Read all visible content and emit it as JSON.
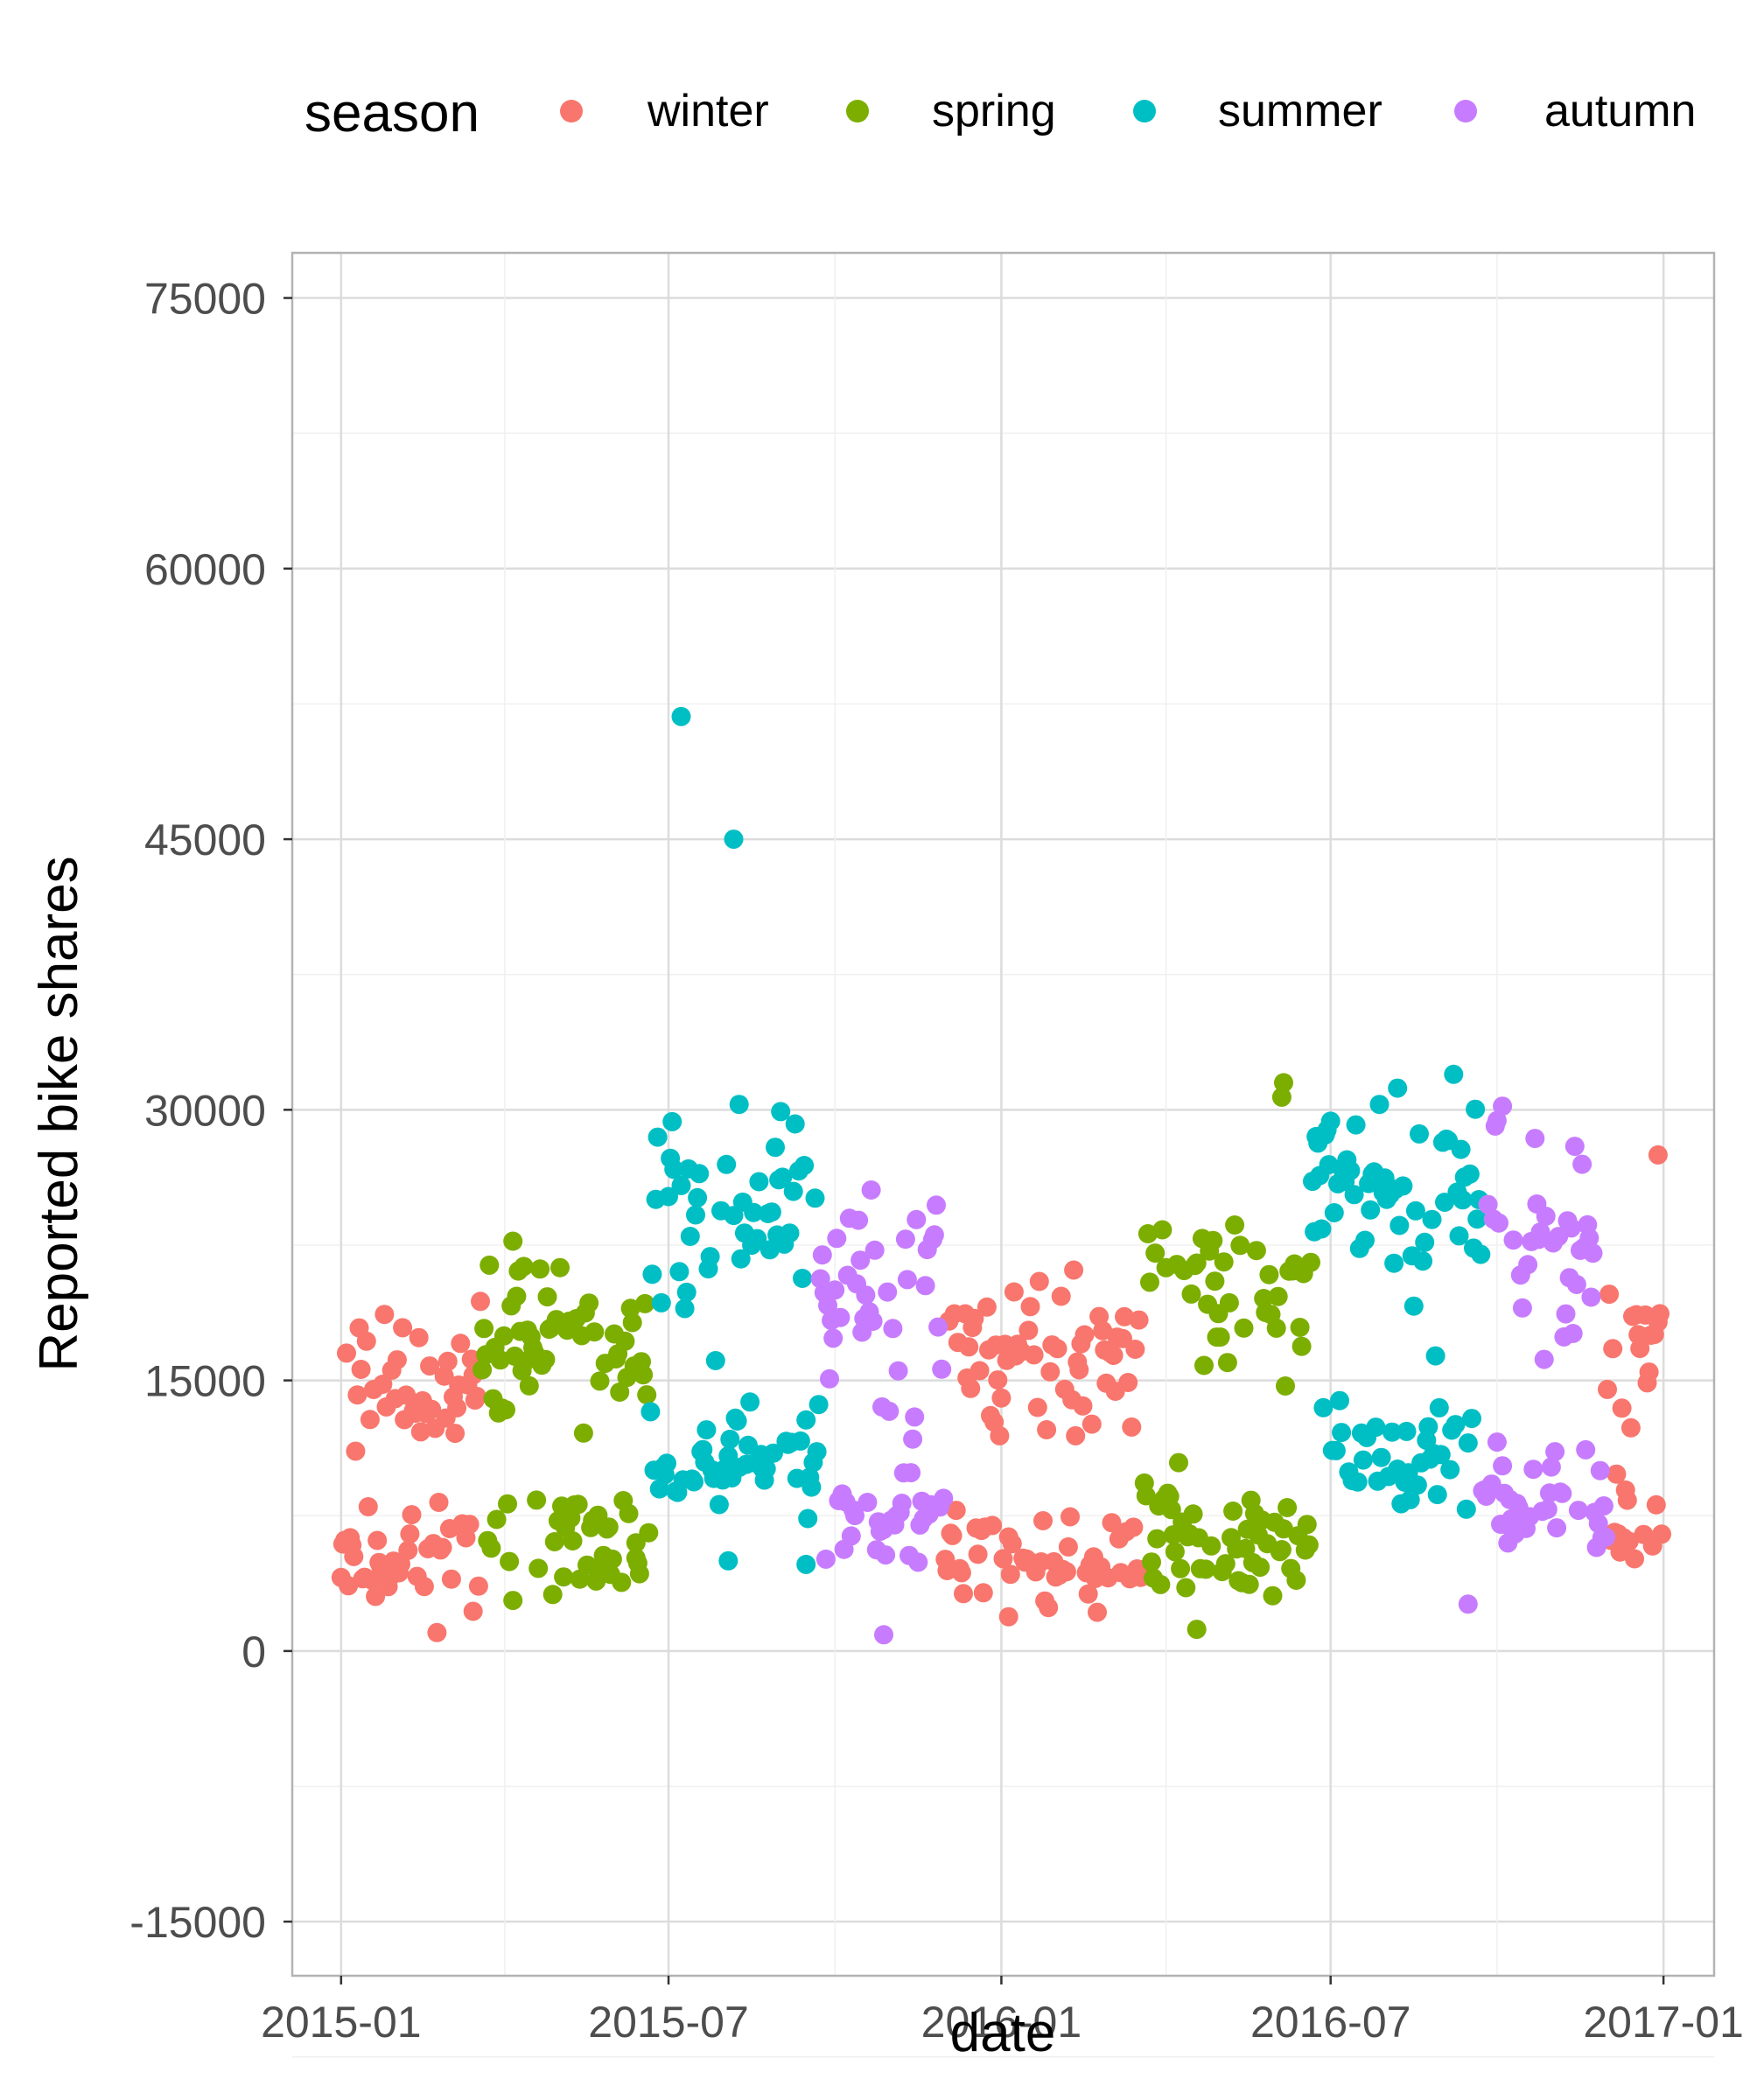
{
  "chart_data": {
    "type": "scatter",
    "title": "",
    "xlabel": "date",
    "ylabel": "Reported bike shares",
    "x_ticks": [
      "2015-01",
      "2015-07",
      "2016-01",
      "2016-07",
      "2017-01"
    ],
    "y_ticks": [
      "-15000",
      "0",
      "15000",
      "30000",
      "45000",
      "60000",
      "75000"
    ],
    "xlim": [
      "2014-12-05",
      "2017-01-29"
    ],
    "ylim": [
      -18000,
      77500
    ],
    "grid": true,
    "legend": {
      "title": "season",
      "position": "top",
      "entries": [
        {
          "label": "winter",
          "color": "#F8766D"
        },
        {
          "label": "spring",
          "color": "#7CAE00"
        },
        {
          "label": "summer",
          "color": "#00BFC4"
        },
        {
          "label": "autumn",
          "color": "#C77CFF"
        }
      ]
    },
    "series": [
      {
        "name": "winter",
        "color": "#F8766D",
        "segments": [
          {
            "start": "2015-01-01",
            "end": "2015-03-19",
            "bands": [
              [
                5200,
                1400
              ],
              [
                14500,
                2200
              ]
            ]
          },
          {
            "start": "2015-12-01",
            "end": "2016-03-19",
            "bands": [
              [
                5200,
                1400
              ],
              [
                15800,
                2200
              ]
            ]
          },
          {
            "start": "2016-12-01",
            "end": "2016-12-31",
            "bands": [
              [
                6500,
                1600
              ],
              [
                17000,
                2200
              ]
            ]
          }
        ],
        "points": [
          {
            "x": "2016-12-29",
            "y": 27500
          },
          {
            "x": "2015-03-15",
            "y": 2200
          },
          {
            "x": "2016-01-05",
            "y": 1900
          }
        ]
      },
      {
        "name": "spring",
        "color": "#7CAE00",
        "segments": [
          {
            "start": "2015-03-20",
            "end": "2015-06-20",
            "bands": [
              [
                6000,
                1500
              ],
              [
                17500,
                2500
              ]
            ]
          },
          {
            "start": "2016-03-20",
            "end": "2016-06-20",
            "bands": [
              [
                6200,
                1500
              ],
              [
                19500,
                2500
              ]
            ]
          }
        ],
        "points": [
          {
            "x": "2016-06-05",
            "y": 31500
          },
          {
            "x": "2016-06-04",
            "y": 30700
          },
          {
            "x": "2016-04-18",
            "y": 1200
          },
          {
            "x": "2015-06-13",
            "y": 6000
          },
          {
            "x": "2015-04-06",
            "y": 2800
          }
        ]
      },
      {
        "name": "summer",
        "color": "#00BFC4",
        "segments": [
          {
            "start": "2015-06-21",
            "end": "2015-09-22",
            "bands": [
              [
                11000,
                1500
              ],
              [
                24000,
                2800
              ]
            ]
          },
          {
            "start": "2016-06-21",
            "end": "2016-09-22",
            "bands": [
              [
                11000,
                1500
              ],
              [
                25500,
                2800
              ]
            ]
          }
        ],
        "points": [
          {
            "x": "2015-07-08",
            "y": 51800
          },
          {
            "x": "2015-08-06",
            "y": 45000
          },
          {
            "x": "2015-08-09",
            "y": 30300
          },
          {
            "x": "2015-09-01",
            "y": 29900
          },
          {
            "x": "2016-08-07",
            "y": 31200
          },
          {
            "x": "2015-08-03",
            "y": 5000
          },
          {
            "x": "2015-09-15",
            "y": 4800
          }
        ]
      },
      {
        "name": "autumn",
        "color": "#C77CFF",
        "segments": [
          {
            "start": "2015-09-23",
            "end": "2015-11-30",
            "bands": [
              [
                7500,
                1500
              ],
              [
                20000,
                2500
              ]
            ]
          },
          {
            "start": "2016-09-23",
            "end": "2016-11-30",
            "bands": [
              [
                8000,
                1500
              ],
              [
                23000,
                2800
              ]
            ]
          }
        ],
        "points": [
          {
            "x": "2015-10-28",
            "y": 900
          },
          {
            "x": "2016-09-15",
            "y": 2600
          },
          {
            "x": "2016-10-04",
            "y": 30200
          },
          {
            "x": "2016-10-01",
            "y": 29400
          }
        ]
      }
    ]
  }
}
